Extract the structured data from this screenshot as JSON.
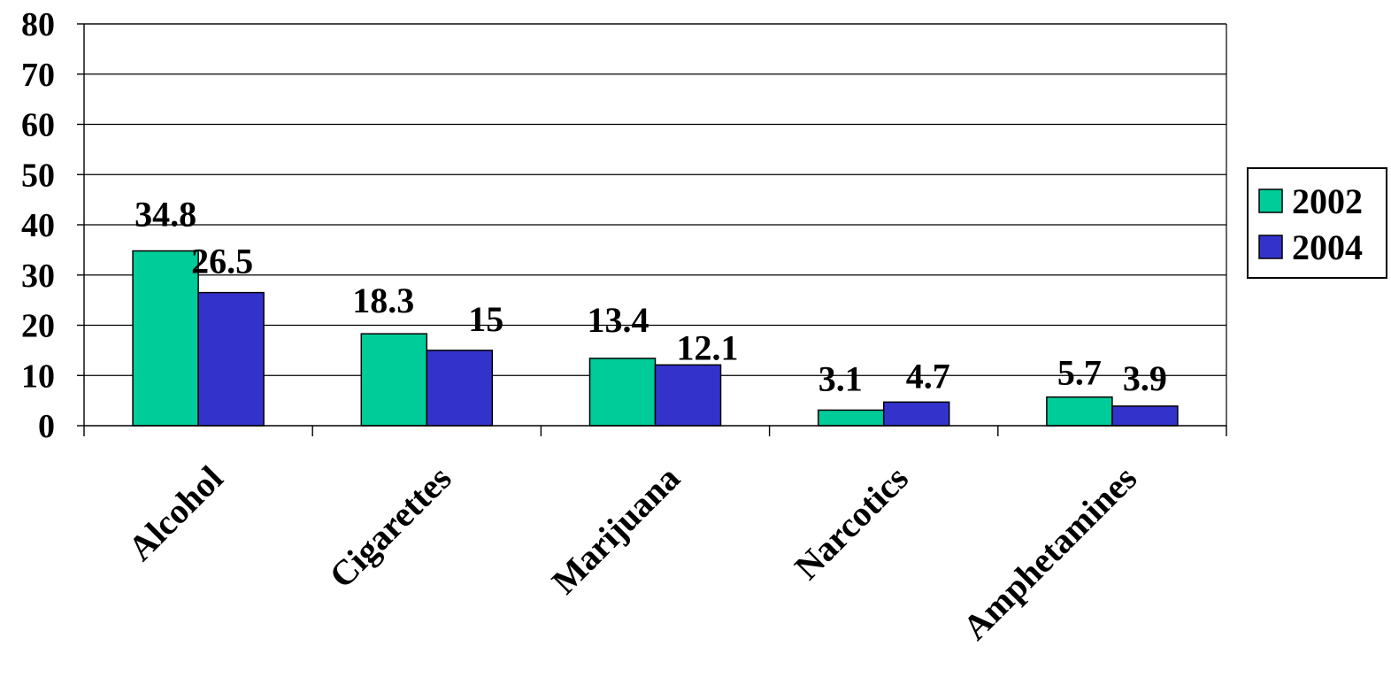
{
  "chart_data": {
    "type": "bar",
    "categories": [
      "Alcohol",
      "Cigarettes",
      "Marijuana",
      "Narcotics",
      "Amphetamines"
    ],
    "series": [
      {
        "name": "2002",
        "values": [
          34.8,
          18.3,
          13.4,
          3.1,
          5.7
        ],
        "color": "#00CC99"
      },
      {
        "name": "2004",
        "values": [
          26.5,
          15,
          12.1,
          4.7,
          3.9
        ],
        "color": "#3333CC"
      }
    ],
    "data_labels": [
      [
        "34.8",
        "18.3",
        "13.4",
        "3.1",
        "5.7"
      ],
      [
        "26.5",
        "15",
        "12.1",
        "4.7",
        "3.9"
      ]
    ],
    "yticks": [
      "0",
      "10",
      "20",
      "30",
      "40",
      "50",
      "60",
      "70",
      "80"
    ],
    "ylim": [
      0,
      80
    ],
    "grid": true,
    "legend_position": "right",
    "title": "",
    "xlabel": "",
    "ylabel": ""
  }
}
